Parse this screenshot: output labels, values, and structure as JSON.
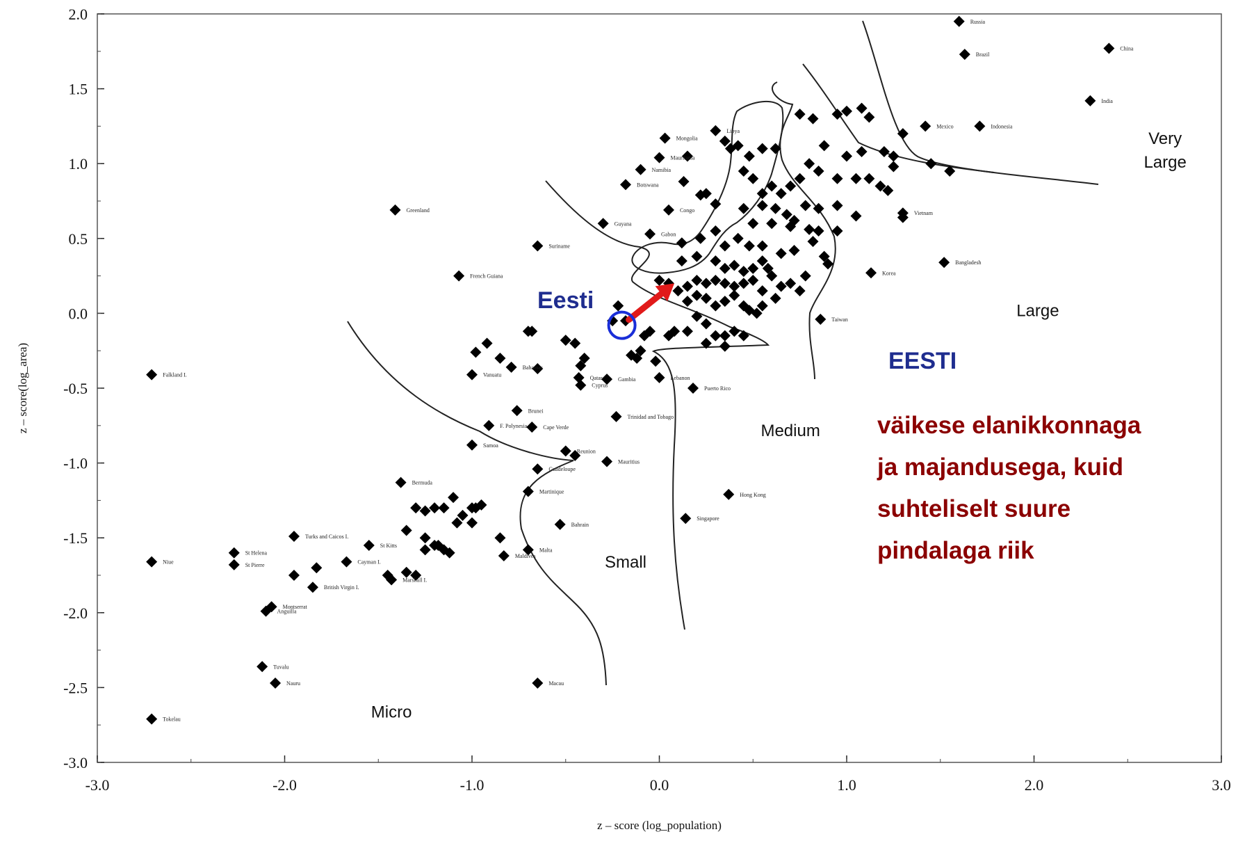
{
  "chart_data": {
    "type": "scatter",
    "xlabel": "z – score (log_population)",
    "ylabel": "z – score(log_area)",
    "xlim": [
      -3.0,
      3.0
    ],
    "ylim": [
      -3.0,
      2.0
    ],
    "x_ticks": [
      "-3.0",
      "-2.0",
      "-1.0",
      "0.0",
      "1.0",
      "2.0",
      "3.0"
    ],
    "y_ticks": [
      "2.0",
      "1.5",
      "1.0",
      "0.5",
      "0.0",
      "-0.5",
      "-1.0",
      "-1.5",
      "-2.0",
      "-2.5",
      "-3.0"
    ],
    "regions": [
      "Very Large",
      "Large",
      "Medium",
      "Small",
      "Micro"
    ],
    "labeled_points": [
      {
        "x": 1.6,
        "y": 1.95,
        "label": "Russia"
      },
      {
        "x": 1.63,
        "y": 1.73,
        "label": "Brazil"
      },
      {
        "x": 2.4,
        "y": 1.77,
        "label": "China"
      },
      {
        "x": 2.3,
        "y": 1.42,
        "label": "India"
      },
      {
        "x": 1.42,
        "y": 1.25,
        "label": "Mexico"
      },
      {
        "x": 1.71,
        "y": 1.25,
        "label": "Indonesia"
      },
      {
        "x": 1.52,
        "y": 0.34,
        "label": "Bangladesh"
      },
      {
        "x": 1.3,
        "y": 0.67,
        "label": "Vietnam"
      },
      {
        "x": 1.13,
        "y": 0.27,
        "label": "Korea"
      },
      {
        "x": 0.86,
        "y": -0.04,
        "label": "Taiwan"
      },
      {
        "x": -1.41,
        "y": 0.69,
        "label": "Greenland"
      },
      {
        "x": -1.07,
        "y": 0.25,
        "label": "French Guiana"
      },
      {
        "x": -0.65,
        "y": 0.45,
        "label": "Suriname"
      },
      {
        "x": -0.3,
        "y": 0.6,
        "label": "Guyana"
      },
      {
        "x": -0.1,
        "y": 0.96,
        "label": "Namibia"
      },
      {
        "x": 0.03,
        "y": 1.17,
        "label": "Mongolia"
      },
      {
        "x": 0.0,
        "y": 1.04,
        "label": "Mauritania"
      },
      {
        "x": -0.18,
        "y": 0.86,
        "label": "Botswana"
      },
      {
        "x": 0.05,
        "y": 0.69,
        "label": "Congo"
      },
      {
        "x": 0.3,
        "y": 1.22,
        "label": "Libya"
      },
      {
        "x": -0.05,
        "y": 0.53,
        "label": "Gabon"
      },
      {
        "x": -2.71,
        "y": -0.41,
        "label": "Falkland I."
      },
      {
        "x": -0.79,
        "y": -0.36,
        "label": "Bahamas"
      },
      {
        "x": -1.0,
        "y": -0.41,
        "label": "Vanuatu"
      },
      {
        "x": -0.43,
        "y": -0.43,
        "label": "Qatar"
      },
      {
        "x": -0.28,
        "y": -0.44,
        "label": "Gambia"
      },
      {
        "x": -0.42,
        "y": -0.48,
        "label": "Cyprus"
      },
      {
        "x": 0.0,
        "y": -0.43,
        "label": "Lebanon"
      },
      {
        "x": 0.18,
        "y": -0.5,
        "label": "Puerto Rico"
      },
      {
        "x": -0.76,
        "y": -0.65,
        "label": "Brunei"
      },
      {
        "x": -0.91,
        "y": -0.75,
        "label": "F. Polynesia"
      },
      {
        "x": -0.68,
        "y": -0.76,
        "label": "Cape Verde"
      },
      {
        "x": -0.23,
        "y": -0.69,
        "label": "Trinidad and Tobago"
      },
      {
        "x": -1.0,
        "y": -0.88,
        "label": "Samoa"
      },
      {
        "x": -0.5,
        "y": -0.92,
        "label": "Reunion"
      },
      {
        "x": -0.28,
        "y": -0.99,
        "label": "Mauritius"
      },
      {
        "x": -0.65,
        "y": -1.04,
        "label": "Guadeloupe"
      },
      {
        "x": -0.7,
        "y": -1.19,
        "label": "Martinique"
      },
      {
        "x": 0.37,
        "y": -1.21,
        "label": "Hong Kong"
      },
      {
        "x": 0.14,
        "y": -1.37,
        "label": "Singapore"
      },
      {
        "x": -0.53,
        "y": -1.41,
        "label": "Bahrain"
      },
      {
        "x": -1.38,
        "y": -1.13,
        "label": "Bermuda"
      },
      {
        "x": -1.95,
        "y": -1.49,
        "label": "Turks and Caicos I."
      },
      {
        "x": -2.27,
        "y": -1.6,
        "label": "St Helena"
      },
      {
        "x": -2.27,
        "y": -1.68,
        "label": "St Pierre"
      },
      {
        "x": -2.71,
        "y": -1.66,
        "label": "Niue"
      },
      {
        "x": -1.55,
        "y": -1.55,
        "label": "St Kitts"
      },
      {
        "x": -1.67,
        "y": -1.66,
        "label": "Cayman I."
      },
      {
        "x": -1.85,
        "y": -1.83,
        "label": "British Virgin I."
      },
      {
        "x": -2.07,
        "y": -1.96,
        "label": "Montserrat"
      },
      {
        "x": -2.1,
        "y": -1.99,
        "label": "Anguilla"
      },
      {
        "x": -2.12,
        "y": -2.36,
        "label": "Tuvalu"
      },
      {
        "x": -2.05,
        "y": -2.47,
        "label": "Nauru"
      },
      {
        "x": -2.71,
        "y": -2.71,
        "label": "Tokelau"
      },
      {
        "x": -0.65,
        "y": -2.47,
        "label": "Macau"
      },
      {
        "x": -1.43,
        "y": -1.78,
        "label": "Marshall I."
      },
      {
        "x": -0.7,
        "y": -1.58,
        "label": "Malta"
      },
      {
        "x": -0.83,
        "y": -1.62,
        "label": "Maldives"
      }
    ],
    "unlabeled_points": [
      [
        0.55,
        1.1
      ],
      [
        0.48,
        1.05
      ],
      [
        0.62,
        1.1
      ],
      [
        0.75,
        1.33
      ],
      [
        0.82,
        1.3
      ],
      [
        0.95,
        1.33
      ],
      [
        1.0,
        1.35
      ],
      [
        1.08,
        1.37
      ],
      [
        1.12,
        1.31
      ],
      [
        1.3,
        1.2
      ],
      [
        0.88,
        1.12
      ],
      [
        1.0,
        1.05
      ],
      [
        1.08,
        1.08
      ],
      [
        1.2,
        1.08
      ],
      [
        1.25,
        1.05
      ],
      [
        1.25,
        0.98
      ],
      [
        1.45,
        1.0
      ],
      [
        1.55,
        0.95
      ],
      [
        0.8,
        1.0
      ],
      [
        0.85,
        0.95
      ],
      [
        0.95,
        0.9
      ],
      [
        1.05,
        0.9
      ],
      [
        1.12,
        0.9
      ],
      [
        1.18,
        0.85
      ],
      [
        1.22,
        0.82
      ],
      [
        0.75,
        0.9
      ],
      [
        0.7,
        0.85
      ],
      [
        0.65,
        0.8
      ],
      [
        0.6,
        0.85
      ],
      [
        0.55,
        0.8
      ],
      [
        0.5,
        0.9
      ],
      [
        0.45,
        0.95
      ],
      [
        0.38,
        1.1
      ],
      [
        0.35,
        1.15
      ],
      [
        0.42,
        1.12
      ],
      [
        0.15,
        1.05
      ],
      [
        0.13,
        0.88
      ],
      [
        0.25,
        0.8
      ],
      [
        0.22,
        0.79
      ],
      [
        0.3,
        0.73
      ],
      [
        0.45,
        0.7
      ],
      [
        0.55,
        0.72
      ],
      [
        0.62,
        0.7
      ],
      [
        0.68,
        0.66
      ],
      [
        0.78,
        0.72
      ],
      [
        0.85,
        0.7
      ],
      [
        0.95,
        0.72
      ],
      [
        1.05,
        0.65
      ],
      [
        1.3,
        0.64
      ],
      [
        0.5,
        0.6
      ],
      [
        0.6,
        0.6
      ],
      [
        0.7,
        0.58
      ],
      [
        0.8,
        0.56
      ],
      [
        0.85,
        0.55
      ],
      [
        0.95,
        0.55
      ],
      [
        0.3,
        0.55
      ],
      [
        0.22,
        0.5
      ],
      [
        0.12,
        0.47
      ],
      [
        0.35,
        0.45
      ],
      [
        0.42,
        0.5
      ],
      [
        0.48,
        0.45
      ],
      [
        0.55,
        0.45
      ],
      [
        0.65,
        0.4
      ],
      [
        0.72,
        0.42
      ],
      [
        0.82,
        0.48
      ],
      [
        0.88,
        0.38
      ],
      [
        0.9,
        0.33
      ],
      [
        0.2,
        0.38
      ],
      [
        0.3,
        0.35
      ],
      [
        0.35,
        0.3
      ],
      [
        0.4,
        0.32
      ],
      [
        0.45,
        0.28
      ],
      [
        0.5,
        0.3
      ],
      [
        0.55,
        0.35
      ],
      [
        0.58,
        0.3
      ],
      [
        0.6,
        0.25
      ],
      [
        0.5,
        0.22
      ],
      [
        0.45,
        0.2
      ],
      [
        0.4,
        0.18
      ],
      [
        0.35,
        0.2
      ],
      [
        0.3,
        0.22
      ],
      [
        0.25,
        0.2
      ],
      [
        0.2,
        0.22
      ],
      [
        0.15,
        0.18
      ],
      [
        0.1,
        0.15
      ],
      [
        0.12,
        0.35
      ],
      [
        0.0,
        0.22
      ],
      [
        0.05,
        0.2
      ],
      [
        0.15,
        0.08
      ],
      [
        0.2,
        0.12
      ],
      [
        0.25,
        0.1
      ],
      [
        0.3,
        0.05
      ],
      [
        0.35,
        0.08
      ],
      [
        0.45,
        0.05
      ],
      [
        0.55,
        0.15
      ],
      [
        0.65,
        0.18
      ],
      [
        0.7,
        0.2
      ],
      [
        0.75,
        0.15
      ],
      [
        0.2,
        -0.02
      ],
      [
        0.25,
        -0.07
      ],
      [
        0.15,
        -0.12
      ],
      [
        0.08,
        -0.12
      ],
      [
        0.05,
        -0.15
      ],
      [
        0.3,
        -0.15
      ],
      [
        0.35,
        -0.15
      ],
      [
        0.4,
        -0.12
      ],
      [
        0.45,
        -0.15
      ],
      [
        0.35,
        -0.22
      ],
      [
        0.25,
        -0.2
      ],
      [
        -0.05,
        -0.12
      ],
      [
        -0.08,
        -0.15
      ],
      [
        -0.1,
        -0.25
      ],
      [
        -0.15,
        -0.28
      ],
      [
        -0.12,
        -0.3
      ],
      [
        -0.02,
        -0.32
      ],
      [
        -0.4,
        -0.3
      ],
      [
        -0.42,
        -0.35
      ],
      [
        -0.45,
        -0.2
      ],
      [
        -0.5,
        -0.18
      ],
      [
        -0.68,
        -0.12
      ],
      [
        -0.7,
        -0.12
      ],
      [
        -0.92,
        -0.2
      ],
      [
        -0.98,
        -0.26
      ],
      [
        -0.85,
        -0.3
      ],
      [
        -0.65,
        -0.37
      ],
      [
        -0.45,
        -0.95
      ],
      [
        -1.0,
        -1.3
      ],
      [
        -1.3,
        -1.3
      ],
      [
        -1.25,
        -1.32
      ],
      [
        -1.2,
        -1.3
      ],
      [
        -1.15,
        -1.3
      ],
      [
        -1.1,
        -1.23
      ],
      [
        -1.05,
        -1.35
      ],
      [
        -1.08,
        -1.4
      ],
      [
        -0.98,
        -1.3
      ],
      [
        -0.95,
        -1.28
      ],
      [
        -1.35,
        -1.45
      ],
      [
        -1.25,
        -1.5
      ],
      [
        -1.2,
        -1.55
      ],
      [
        -1.15,
        -1.58
      ],
      [
        -1.25,
        -1.58
      ],
      [
        -1.18,
        -1.55
      ],
      [
        -1.12,
        -1.6
      ],
      [
        -0.85,
        -1.5
      ],
      [
        -1.3,
        -1.75
      ],
      [
        -1.35,
        -1.73
      ],
      [
        -1.45,
        -1.75
      ],
      [
        -1.95,
        -1.75
      ],
      [
        -1.83,
        -1.7
      ],
      [
        -1.0,
        -1.4
      ],
      [
        -0.22,
        0.05
      ],
      [
        -0.18,
        -0.05
      ],
      [
        -0.25,
        -0.05
      ],
      [
        0.72,
        0.62
      ],
      [
        0.78,
        0.25
      ],
      [
        0.62,
        0.1
      ],
      [
        0.55,
        0.05
      ],
      [
        0.52,
        0.0
      ],
      [
        0.48,
        0.02
      ],
      [
        0.4,
        0.12
      ]
    ],
    "annotations": {
      "marker_label": "Eesti",
      "side_title": "EESTI",
      "side_text": [
        "väikese elanikkonnaga",
        "ja majandusega, kuid",
        "suhteliselt suure",
        "pindalaga riik"
      ],
      "marker_point": {
        "x": -0.2,
        "y": -0.08
      },
      "arrow_to": {
        "x": 0.08,
        "y": 0.2
      }
    },
    "colors": {
      "points": "#000000",
      "marker_label": "#1f2d8f",
      "marker_circle": "#1a2ed8",
      "arrow": "#e11a1a",
      "side_text": "#8b0000"
    },
    "grid": false
  }
}
